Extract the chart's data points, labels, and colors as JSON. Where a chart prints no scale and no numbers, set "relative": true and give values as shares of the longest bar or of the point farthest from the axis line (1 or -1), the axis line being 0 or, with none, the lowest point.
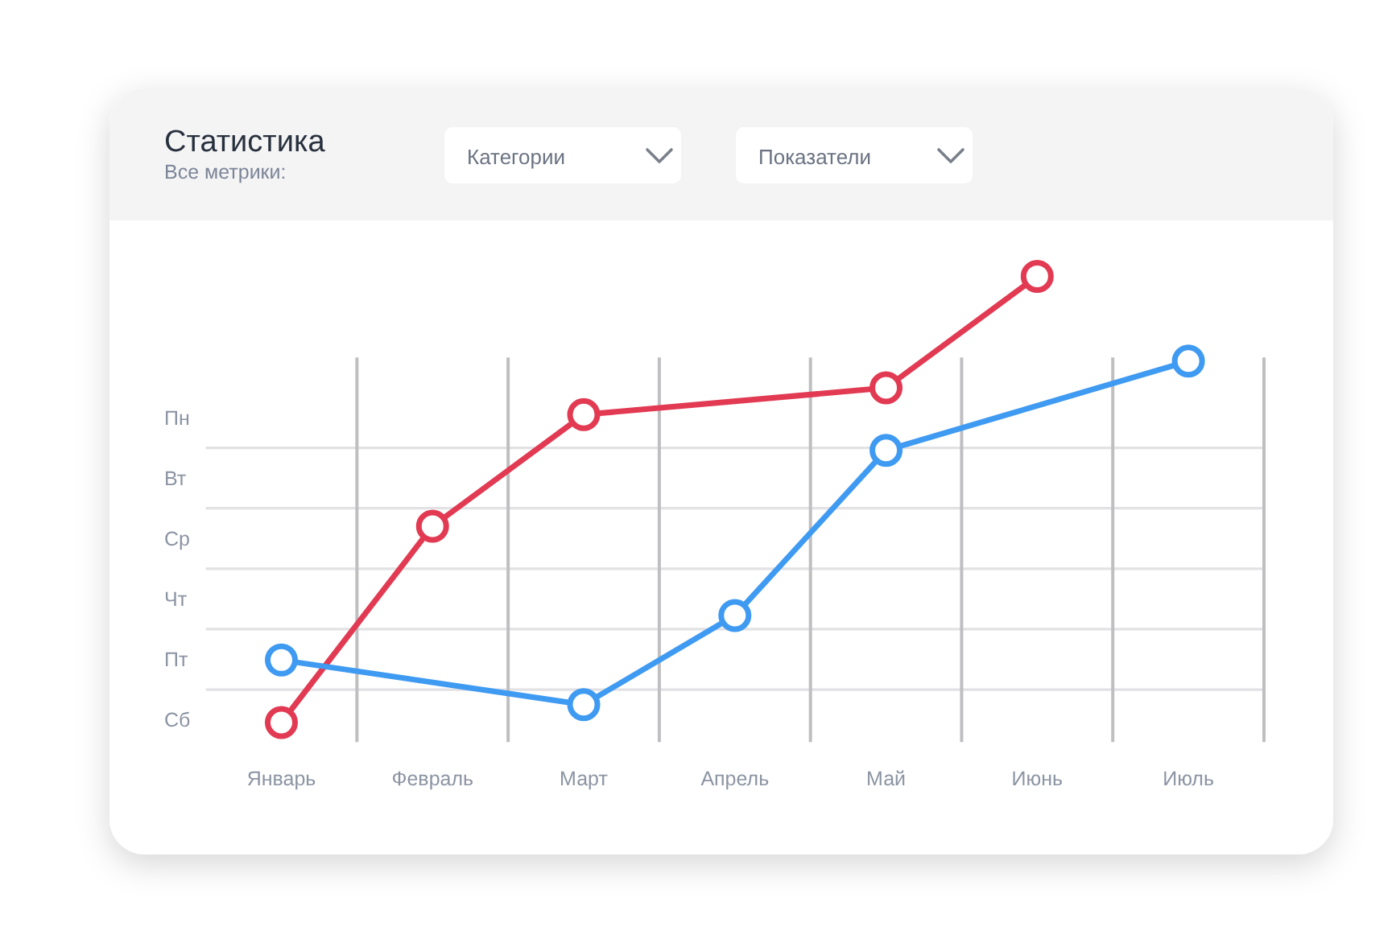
{
  "chart_data": {
    "type": "line",
    "title": "Статистика",
    "subtitle": "Все метрики:",
    "annotations": [
      "Категории",
      "Показатели"
    ],
    "categories": [
      "Январь",
      "Февраль",
      "Март",
      "Апрель",
      "Май",
      "Июнь",
      "Июль"
    ],
    "y_categories": [
      "Пн",
      "Вт",
      "Ср",
      "Чт",
      "Пт",
      "Сб"
    ],
    "relative": true,
    "grid": true,
    "marker": "circle",
    "line_style": "solid",
    "series": [
      {
        "color": "#e23a52",
        "x": [
          "Январь",
          "Февраль",
          "Март",
          "Май",
          "Июнь"
        ],
        "values": [
          0,
          0.44,
          0.69,
          0.75,
          1
        ]
      },
      {
        "color": "#3f9af2",
        "x": [
          "Январь",
          "Март",
          "Апрель",
          "Май",
          "Июль"
        ],
        "values": [
          0.14,
          0.04,
          0.24,
          0.61,
          0.81
        ]
      }
    ]
  }
}
